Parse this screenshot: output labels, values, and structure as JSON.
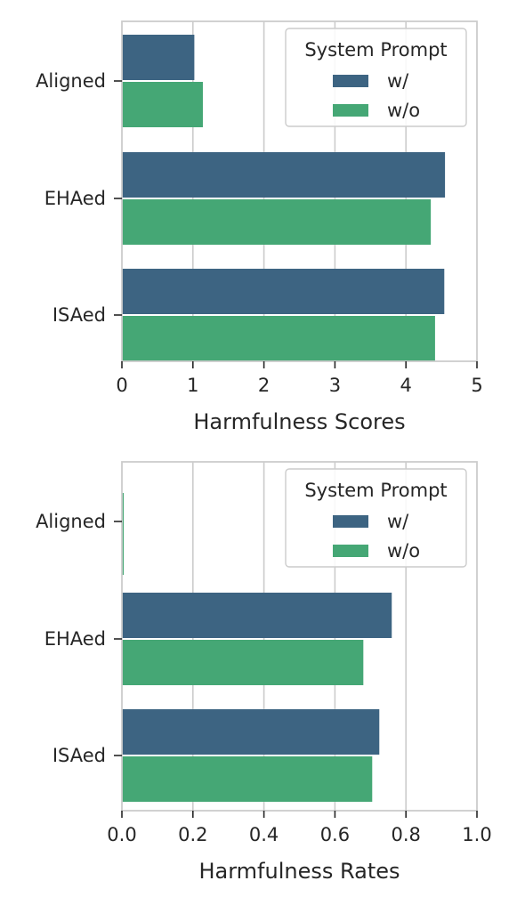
{
  "chart_data": [
    {
      "type": "bar",
      "orientation": "horizontal",
      "categories": [
        "Aligned",
        "EHAed",
        "ISAed"
      ],
      "series": [
        {
          "name": "w/",
          "values": [
            1.02,
            4.55,
            4.54
          ]
        },
        {
          "name": "w/o",
          "values": [
            1.14,
            4.35,
            4.41
          ]
        }
      ],
      "title": "",
      "xlabel": "Harmfulness Scores",
      "ylabel": "",
      "xlim": [
        0,
        5
      ],
      "xticks": [
        "0",
        "1",
        "2",
        "3",
        "4",
        "5"
      ],
      "tick_values": [
        0,
        1,
        2,
        3,
        4,
        5
      ],
      "grid": "vertical",
      "legend": {
        "title": "System Prompt",
        "placement": "top-right"
      }
    },
    {
      "type": "bar",
      "orientation": "horizontal",
      "categories": [
        "Aligned",
        "EHAed",
        "ISAed"
      ],
      "series": [
        {
          "name": "w/",
          "values": [
            0.0,
            0.76,
            0.725
          ]
        },
        {
          "name": "w/o",
          "values": [
            0.005,
            0.68,
            0.705
          ]
        }
      ],
      "title": "",
      "xlabel": "Harmfulness Rates",
      "ylabel": "",
      "xlim": [
        0,
        1.0
      ],
      "xticks": [
        "0.0",
        "0.2",
        "0.4",
        "0.6",
        "0.8",
        "1.0"
      ],
      "tick_values": [
        0,
        0.2,
        0.4,
        0.6,
        0.8,
        1.0
      ],
      "grid": "vertical",
      "legend": {
        "title": "System Prompt",
        "placement": "top-right"
      }
    }
  ],
  "colors": {
    "series_w": "#3d6482",
    "series_wo": "#45a775",
    "grid": "#cccccc",
    "spine": "#cccccc",
    "tick": "#262626"
  }
}
